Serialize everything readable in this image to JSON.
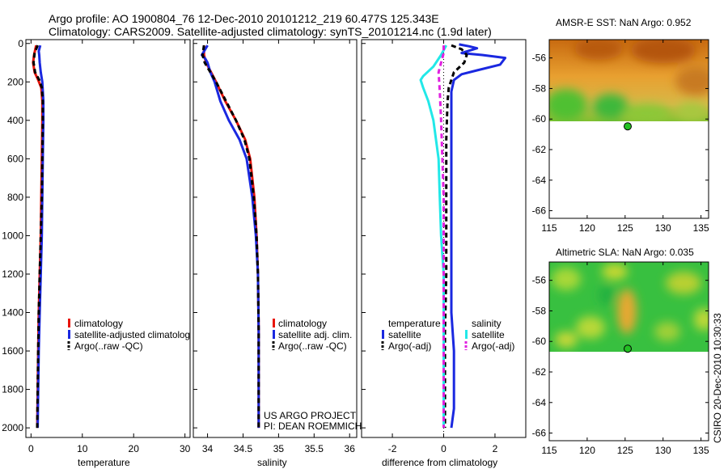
{
  "header": {
    "title_line1": "Argo profile: AO 1900804_76 12-Dec-2010 20101212_219 60.477S 125.343E",
    "title_line2": "Climatology: CARS2009. Satellite-adjusted climatology: synTS_20101214.nc (1.9d later)"
  },
  "footer": {
    "credit_line1": "US ARGO PROJECT",
    "credit_line2": "PI: DEAN ROEMMICH",
    "side_stamp": "CSIRO 20-Dec-2010 10:30:33"
  },
  "colors": {
    "climatology": "#e8140a",
    "satellite_adj": "#1a28e0",
    "argo": "#000000",
    "satellite_temp": "#1a28e0",
    "satellite_sal": "#22e8e8",
    "argo_sal": "#e020e0",
    "marker": "#22c022"
  },
  "chart_data": [
    {
      "type": "line",
      "name": "temperature-profile",
      "xlabel": "temperature",
      "xlim": [
        -1,
        31
      ],
      "ylim": [
        2050,
        -20
      ],
      "xticks": [
        0,
        10,
        20,
        30
      ],
      "yticks": [
        0,
        200,
        400,
        600,
        800,
        1000,
        1200,
        1400,
        1600,
        1800,
        2000
      ],
      "legend": [
        "climatology",
        "satellite-adjusted climatolog",
        "Argo(..raw -QC)"
      ],
      "series": [
        {
          "name": "climatology",
          "style": "solid",
          "color_key": "climatology",
          "points": [
            [
              1.0,
              10
            ],
            [
              0.6,
              60
            ],
            [
              0.4,
              100
            ],
            [
              0.7,
              150
            ],
            [
              1.4,
              190
            ],
            [
              2.0,
              230
            ],
            [
              2.2,
              300
            ],
            [
              2.2,
              400
            ],
            [
              2.1,
              600
            ],
            [
              2.0,
              800
            ],
            [
              1.9,
              1000
            ],
            [
              1.7,
              1200
            ],
            [
              1.5,
              1400
            ],
            [
              1.4,
              1600
            ],
            [
              1.3,
              1800
            ],
            [
              1.2,
              2000
            ]
          ]
        },
        {
          "name": "satellite-adjusted climatolog",
          "style": "solid",
          "color_key": "satellite_adj",
          "points": [
            [
              1.8,
              10
            ],
            [
              1.5,
              40
            ],
            [
              1.6,
              60
            ],
            [
              1.7,
              100
            ],
            [
              1.9,
              150
            ],
            [
              2.2,
              200
            ],
            [
              2.4,
              300
            ],
            [
              2.4,
              400
            ],
            [
              2.3,
              600
            ],
            [
              2.2,
              800
            ],
            [
              2.1,
              1000
            ],
            [
              1.9,
              1200
            ],
            [
              1.7,
              1400
            ],
            [
              1.5,
              1600
            ],
            [
              1.4,
              1800
            ],
            [
              1.3,
              2000
            ]
          ]
        },
        {
          "name": "Argo(..raw -QC)",
          "style": "dash",
          "color_key": "argo",
          "points": [
            [
              1.3,
              10
            ],
            [
              0.7,
              50
            ],
            [
              0.5,
              100
            ],
            [
              0.8,
              150
            ],
            [
              1.6,
              190
            ],
            [
              2.1,
              230
            ],
            [
              2.3,
              300
            ],
            [
              2.3,
              400
            ],
            [
              2.2,
              600
            ],
            [
              2.1,
              800
            ],
            [
              1.9,
              1000
            ],
            [
              1.7,
              1200
            ],
            [
              1.5,
              1400
            ],
            [
              1.4,
              1600
            ],
            [
              1.3,
              1800
            ],
            [
              1.2,
              2000
            ]
          ]
        }
      ]
    },
    {
      "type": "line",
      "name": "salinity-profile",
      "xlabel": "salinity",
      "xlim": [
        33.8,
        36.1
      ],
      "ylim": [
        2050,
        -20
      ],
      "xticks": [
        34,
        34.5,
        35,
        35.5,
        36
      ],
      "legend": [
        "climatology",
        "satellite adj. clim.",
        "Argo(..raw -QC)"
      ],
      "series": [
        {
          "name": "climatology",
          "style": "solid",
          "color_key": "climatology",
          "points": [
            [
              33.95,
              10
            ],
            [
              33.95,
              60
            ],
            [
              33.98,
              100
            ],
            [
              34.05,
              150
            ],
            [
              34.12,
              200
            ],
            [
              34.25,
              300
            ],
            [
              34.4,
              400
            ],
            [
              34.53,
              500
            ],
            [
              34.6,
              600
            ],
            [
              34.66,
              800
            ],
            [
              34.69,
              1000
            ],
            [
              34.71,
              1200
            ],
            [
              34.72,
              1500
            ],
            [
              34.72,
              1800
            ],
            [
              34.72,
              2000
            ]
          ]
        },
        {
          "name": "satellite adj. clim.",
          "style": "solid",
          "color_key": "satellite_adj",
          "points": [
            [
              34.0,
              10
            ],
            [
              33.92,
              60
            ],
            [
              33.97,
              80
            ],
            [
              34.0,
              100
            ],
            [
              34.04,
              150
            ],
            [
              34.1,
              200
            ],
            [
              34.18,
              300
            ],
            [
              34.3,
              400
            ],
            [
              34.45,
              500
            ],
            [
              34.55,
              600
            ],
            [
              34.63,
              800
            ],
            [
              34.68,
              1000
            ],
            [
              34.71,
              1200
            ],
            [
              34.72,
              1500
            ],
            [
              34.72,
              1800
            ],
            [
              34.72,
              2000
            ]
          ]
        },
        {
          "name": "Argo(..raw -QC)",
          "style": "dash",
          "color_key": "argo",
          "points": [
            [
              33.95,
              10
            ],
            [
              33.93,
              60
            ],
            [
              33.96,
              100
            ],
            [
              34.04,
              150
            ],
            [
              34.12,
              200
            ],
            [
              34.26,
              300
            ],
            [
              34.4,
              400
            ],
            [
              34.52,
              500
            ],
            [
              34.59,
              600
            ],
            [
              34.65,
              800
            ],
            [
              34.69,
              1000
            ],
            [
              34.71,
              1200
            ],
            [
              34.72,
              1500
            ],
            [
              34.72,
              1800
            ],
            [
              34.72,
              2000
            ]
          ]
        }
      ]
    },
    {
      "type": "line",
      "name": "difference-profile",
      "xlabel": "difference from climatology",
      "xlim": [
        -3.2,
        3.2
      ],
      "ylim": [
        2050,
        -20
      ],
      "xticks": [
        -2,
        0,
        2
      ],
      "legend_groups": [
        {
          "title": "temperature",
          "items": [
            "satellite",
            "Argo(-adj)"
          ]
        },
        {
          "title": "salinity",
          "items": [
            "satellite",
            "Argo(-adj)"
          ]
        }
      ],
      "series": [
        {
          "name": "temperature satellite",
          "style": "solid",
          "color_key": "satellite_temp",
          "points": [
            [
              0.6,
              5
            ],
            [
              1.0,
              15
            ],
            [
              1.3,
              25
            ],
            [
              0.7,
              50
            ],
            [
              1.5,
              60
            ],
            [
              2.4,
              75
            ],
            [
              2.2,
              110
            ],
            [
              1.3,
              140
            ],
            [
              0.7,
              160
            ],
            [
              0.4,
              190
            ],
            [
              0.3,
              250
            ],
            [
              0.3,
              400
            ],
            [
              0.3,
              800
            ],
            [
              0.3,
              1000
            ],
            [
              0.3,
              1200
            ],
            [
              0.3,
              1400
            ],
            [
              0.4,
              1600
            ],
            [
              0.4,
              1800
            ],
            [
              0.4,
              1900
            ],
            [
              0.3,
              2000
            ]
          ]
        },
        {
          "name": "temperature Argo(-adj)",
          "style": "dash",
          "color_key": "argo",
          "points": [
            [
              0.3,
              10
            ],
            [
              0.7,
              30
            ],
            [
              0.9,
              60
            ],
            [
              0.8,
              100
            ],
            [
              0.4,
              150
            ],
            [
              0.2,
              230
            ],
            [
              0.15,
              300
            ],
            [
              0.1,
              500
            ],
            [
              0.1,
              800
            ],
            [
              0.1,
              1000
            ],
            [
              0.1,
              1200
            ],
            [
              0.05,
              1500
            ],
            [
              0.05,
              1800
            ],
            [
              0.05,
              2000
            ]
          ]
        },
        {
          "name": "salinity satellite",
          "style": "solid",
          "color_key": "satellite_sal",
          "points": [
            [
              0.1,
              10
            ],
            [
              -0.1,
              60
            ],
            [
              -0.4,
              120
            ],
            [
              -0.8,
              170
            ],
            [
              -0.9,
              190
            ],
            [
              -0.8,
              230
            ],
            [
              -0.6,
              300
            ],
            [
              -0.4,
              400
            ],
            [
              -0.2,
              600
            ],
            [
              -0.15,
              800
            ],
            [
              -0.1,
              1000
            ],
            [
              0.0,
              1200
            ],
            [
              0.0,
              1500
            ],
            [
              0.0,
              2000
            ]
          ]
        },
        {
          "name": "salinity Argo(-adj)",
          "style": "dash",
          "color_key": "argo_sal",
          "points": [
            [
              0.0,
              10
            ],
            [
              0.0,
              50
            ],
            [
              -0.1,
              100
            ],
            [
              -0.2,
              150
            ],
            [
              -0.15,
              250
            ],
            [
              -0.1,
              400
            ],
            [
              -0.05,
              600
            ],
            [
              0.0,
              800
            ],
            [
              0.0,
              1000
            ],
            [
              0.0,
              1500
            ],
            [
              0.0,
              2000
            ]
          ]
        }
      ]
    },
    {
      "type": "heatmap",
      "name": "amsre-sst-map",
      "title": "AMSR-E SST: NaN Argo: 0.952",
      "xlim": [
        115,
        136
      ],
      "ylim": [
        -66.5,
        -54.8
      ],
      "xticks": [
        115,
        120,
        125,
        130,
        135
      ],
      "yticks": [
        -56,
        -58,
        -60,
        -62,
        -64,
        -66
      ],
      "field_extent_lat": [
        -60.2,
        -54.8
      ],
      "argo_position": {
        "lon": 125.343,
        "lat": -60.477
      }
    },
    {
      "type": "heatmap",
      "name": "altimetric-sla-map",
      "title": "Altimetric SLA: NaN Argo: 0.035",
      "xlim": [
        115,
        136
      ],
      "ylim": [
        -66.5,
        -54.8
      ],
      "xticks": [
        115,
        120,
        125,
        130,
        135
      ],
      "yticks": [
        -56,
        -58,
        -60,
        -62,
        -64,
        -66
      ],
      "field_extent_lat": [
        -60.2,
        -54.8
      ],
      "argo_position": {
        "lon": 125.343,
        "lat": -60.477
      }
    }
  ]
}
